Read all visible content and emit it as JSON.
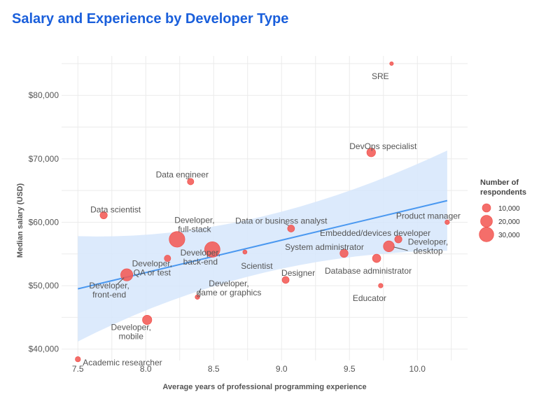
{
  "chart_data": {
    "type": "scatter",
    "title": "Salary and Experience by Developer Type",
    "xlabel": "Average years of professional programming experience",
    "ylabel": "Median salary (USD)",
    "xlim": [
      7.38,
      10.37
    ],
    "ylim": [
      38200,
      86200
    ],
    "x_ticks": [
      7.5,
      8.0,
      8.5,
      9.0,
      9.5,
      10.0
    ],
    "x_tick_labels": [
      "7.5",
      "8.0",
      "8.5",
      "9.0",
      "9.5",
      "10.0"
    ],
    "y_ticks": [
      40000,
      50000,
      60000,
      70000,
      80000
    ],
    "y_tick_labels": [
      "$40,000",
      "$50,000",
      "$60,000",
      "$70,000",
      "$80,000"
    ],
    "grid": true,
    "point_color": "#f25a55",
    "points": [
      {
        "name": "SRE",
        "label": [
          "SRE"
        ],
        "x": 9.81,
        "y": 85000,
        "n": 2000
      },
      {
        "name": "DevOps specialist",
        "label": [
          "DevOps specialist"
        ],
        "x": 9.66,
        "y": 71000,
        "n": 11000
      },
      {
        "name": "Data engineer",
        "label": [
          "Data engineer"
        ],
        "x": 8.33,
        "y": 66400,
        "n": 6000
      },
      {
        "name": "Data scientist",
        "label": [
          "Data scientist"
        ],
        "x": 7.69,
        "y": 61100,
        "n": 7500
      },
      {
        "name": "Developer, full-stack",
        "label": [
          "Developer,",
          "full-stack"
        ],
        "x": 8.23,
        "y": 57300,
        "n": 35000
      },
      {
        "name": "Developer, back-end",
        "label": [
          "Developer,",
          "back-end"
        ],
        "x": 8.49,
        "y": 55700,
        "n": 34000
      },
      {
        "name": "Developer, QA or test",
        "label": [
          "Developer,",
          "QA or test"
        ],
        "x": 8.16,
        "y": 54300,
        "n": 6000
      },
      {
        "name": "Developer, front-end",
        "label": [
          "Developer,",
          "front-end"
        ],
        "x": 7.86,
        "y": 51700,
        "n": 21000
      },
      {
        "name": "Developer, mobile",
        "label": [
          "Developer,",
          "mobile"
        ],
        "x": 8.01,
        "y": 44600,
        "n": 12500
      },
      {
        "name": "Developer, game or graphics",
        "label": [
          "Developer,",
          "game or graphics"
        ],
        "x": 8.38,
        "y": 48200,
        "n": 3000
      },
      {
        "name": "Scientist",
        "label": [
          "Scientist"
        ],
        "x": 8.73,
        "y": 55300,
        "n": 2500
      },
      {
        "name": "Data or business analyst",
        "label": [
          "Data or business analyst"
        ],
        "x": 9.07,
        "y": 59000,
        "n": 7000
      },
      {
        "name": "Designer",
        "label": [
          "Designer"
        ],
        "x": 9.03,
        "y": 50900,
        "n": 7000
      },
      {
        "name": "System administrator",
        "label": [
          "System administrator"
        ],
        "x": 9.46,
        "y": 55100,
        "n": 9500
      },
      {
        "name": "Database administrator",
        "label": [
          "Database administrator"
        ],
        "x": 9.7,
        "y": 54300,
        "n": 10000
      },
      {
        "name": "Embedded/devices developer",
        "label": [
          "Embedded/devices developer"
        ],
        "x": 9.86,
        "y": 57300,
        "n": 7500
      },
      {
        "name": "Developer, desktop",
        "label": [
          "Developer,",
          "desktop"
        ],
        "x": 9.79,
        "y": 56200,
        "n": 17000
      },
      {
        "name": "Educator",
        "label": [
          "Educator"
        ],
        "x": 9.73,
        "y": 50000,
        "n": 3000
      },
      {
        "name": "Product manager",
        "label": [
          "Product manager"
        ],
        "x": 10.22,
        "y": 60000,
        "n": 3000
      },
      {
        "name": "Academic researcher",
        "label": [
          "Academic researcher"
        ],
        "x": 7.5,
        "y": 38400,
        "n": 4000
      }
    ],
    "trend": {
      "type": "linear fit with confidence band",
      "color": "#4a98f0",
      "band_color": "#d6e6fb",
      "x": [
        7.5,
        10.22
      ],
      "fit": [
        49500,
        63400
      ],
      "lower": [
        41300,
        55200
      ],
      "upper": [
        57800,
        71300
      ]
    },
    "legend": {
      "title": [
        "Number of",
        "respondents"
      ],
      "placement": "right",
      "entries": [
        {
          "label": "10,000",
          "n": 10000
        },
        {
          "label": "20,000",
          "n": 20000
        },
        {
          "label": "30,000",
          "n": 30000
        }
      ]
    }
  }
}
